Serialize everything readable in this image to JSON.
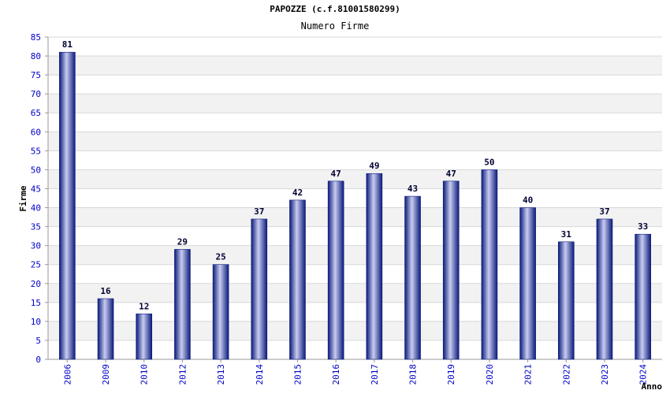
{
  "chart_data": {
    "type": "bar",
    "title": "PAPOZZE (c.f.81001580299)",
    "subtitle": "Numero Firme",
    "xlabel": "Anno",
    "ylabel": "Firme",
    "categories": [
      "2006",
      "2009",
      "2010",
      "2012",
      "2013",
      "2014",
      "2015",
      "2016",
      "2017",
      "2018",
      "2019",
      "2020",
      "2021",
      "2022",
      "2023",
      "2024"
    ],
    "values": [
      81,
      16,
      12,
      29,
      25,
      37,
      42,
      47,
      49,
      43,
      47,
      50,
      40,
      31,
      37,
      33
    ],
    "ylim": [
      0,
      85
    ],
    "ytick_step": 5,
    "grid": true,
    "colors": {
      "bar_dark": "#0a1a7a",
      "bar_light": "#c8ccf0",
      "tick_label": "#0000cc",
      "data_label": "#000033",
      "grid_band": "#f2f2f2",
      "grid_line": "#d8d8d8",
      "axis": "#999999"
    }
  }
}
